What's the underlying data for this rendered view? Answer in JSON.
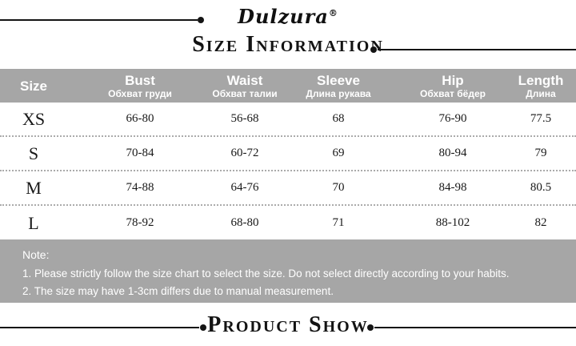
{
  "brand": {
    "name": "Dulzura",
    "registered_mark": "®"
  },
  "titles": {
    "size_information": "Size Information",
    "product_show": "Product Show"
  },
  "table": {
    "columns": [
      {
        "en": "Size",
        "ru": ""
      },
      {
        "en": "Bust",
        "ru": "Обхват груди"
      },
      {
        "en": "Waist",
        "ru": "Обхват талии"
      },
      {
        "en": "Sleeve",
        "ru": "Длина рукава"
      },
      {
        "en": "Hip",
        "ru": "Обхват бёдер"
      },
      {
        "en": "Length",
        "ru": "Длина"
      }
    ],
    "rows": [
      {
        "size": "XS",
        "bust": "66-80",
        "waist": "56-68",
        "sleeve": "68",
        "hip": "76-90",
        "length": "77.5"
      },
      {
        "size": "S",
        "bust": "70-84",
        "waist": "60-72",
        "sleeve": "69",
        "hip": "80-94",
        "length": "79"
      },
      {
        "size": "M",
        "bust": "74-88",
        "waist": "64-76",
        "sleeve": "70",
        "hip": "84-98",
        "length": "80.5"
      },
      {
        "size": "L",
        "bust": "78-92",
        "waist": "68-80",
        "sleeve": "71",
        "hip": "88-102",
        "length": "82"
      }
    ]
  },
  "note": {
    "title": "Note:",
    "lines": [
      "1. Please strictly follow the size chart to select the size. Do not select directly according to your habits.",
      "2. The size may have 1-3cm differs due to manual measurement."
    ]
  },
  "colors": {
    "header_bg": "#a6a6a6",
    "note_bg": "#a6a6a6",
    "line": "#141414",
    "header_text": "#ffffff",
    "body_text": "#181818"
  }
}
